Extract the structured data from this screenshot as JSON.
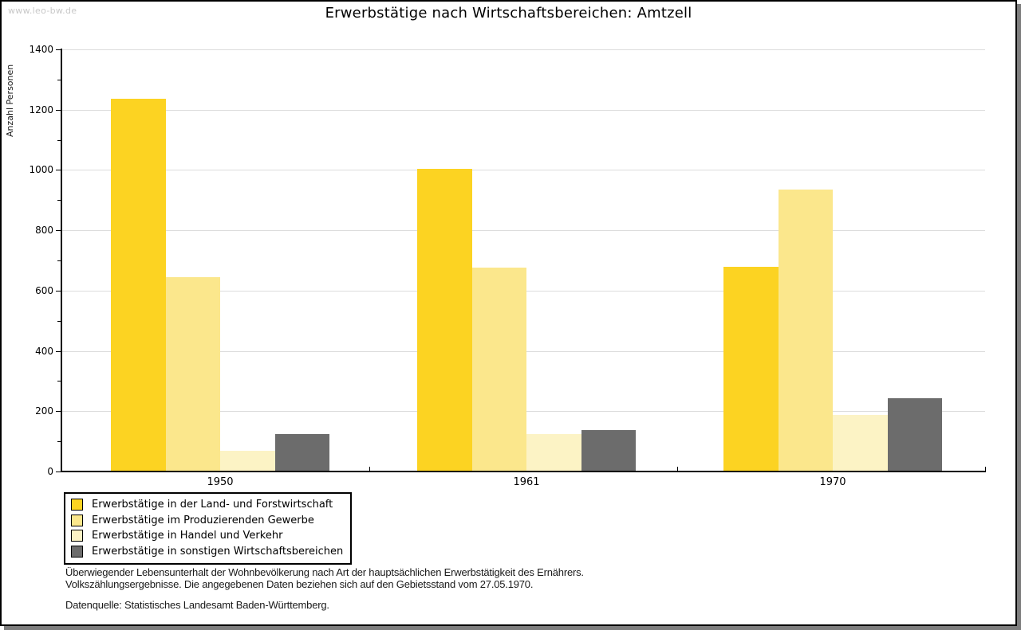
{
  "watermark": "www.leo-bw.de",
  "title": "Erwerbstätige nach Wirtschaftsbereichen: Amtzell",
  "chart_data": {
    "type": "bar",
    "title": "Erwerbstätige nach Wirtschaftsbereichen: Amtzell",
    "ylabel": "Anzahl Personen",
    "xlabel": "",
    "ylim": [
      0,
      1400
    ],
    "ytick_step": 200,
    "yticks": [
      0,
      200,
      400,
      600,
      800,
      1000,
      1200,
      1400
    ],
    "minor_tick_step": 100,
    "grid": true,
    "legend_position": "bottom-left",
    "categories": [
      "1950",
      "1961",
      "1970"
    ],
    "series": [
      {
        "name": "Erwerbstätige in der Land- und Forstwirtschaft",
        "color": "#FCD322",
        "values": [
          1237,
          1003,
          679
        ]
      },
      {
        "name": "Erwerbstätige im Produzierenden Gewerbe",
        "color": "#FBE78C",
        "values": [
          645,
          675,
          934
        ]
      },
      {
        "name": "Erwerbstätige in Handel und Verkehr",
        "color": "#FCF3C5",
        "values": [
          70,
          125,
          187
        ]
      },
      {
        "name": "Erwerbstätige in sonstigen Wirtschaftsbereichen",
        "color": "#6C6C6C",
        "values": [
          123,
          138,
          244
        ]
      }
    ]
  },
  "footnotes": {
    "line1": "Überwiegender Lebensunterhalt der Wohnbevölkerung nach Art der hauptsächlichen Erwerbstätigkeit des Ernährers.",
    "line2": "Volkszählungsergebnisse. Die angegebenen Daten beziehen sich auf den Gebietsstand vom 27.05.1970.",
    "source": "Datenquelle: Statistisches Landesamt Baden-Württemberg."
  },
  "colors": {
    "grid": "#dcdcdc",
    "axis": "#000000",
    "watermark": "#c8c8c8",
    "shadow": "#7e7e7e"
  }
}
